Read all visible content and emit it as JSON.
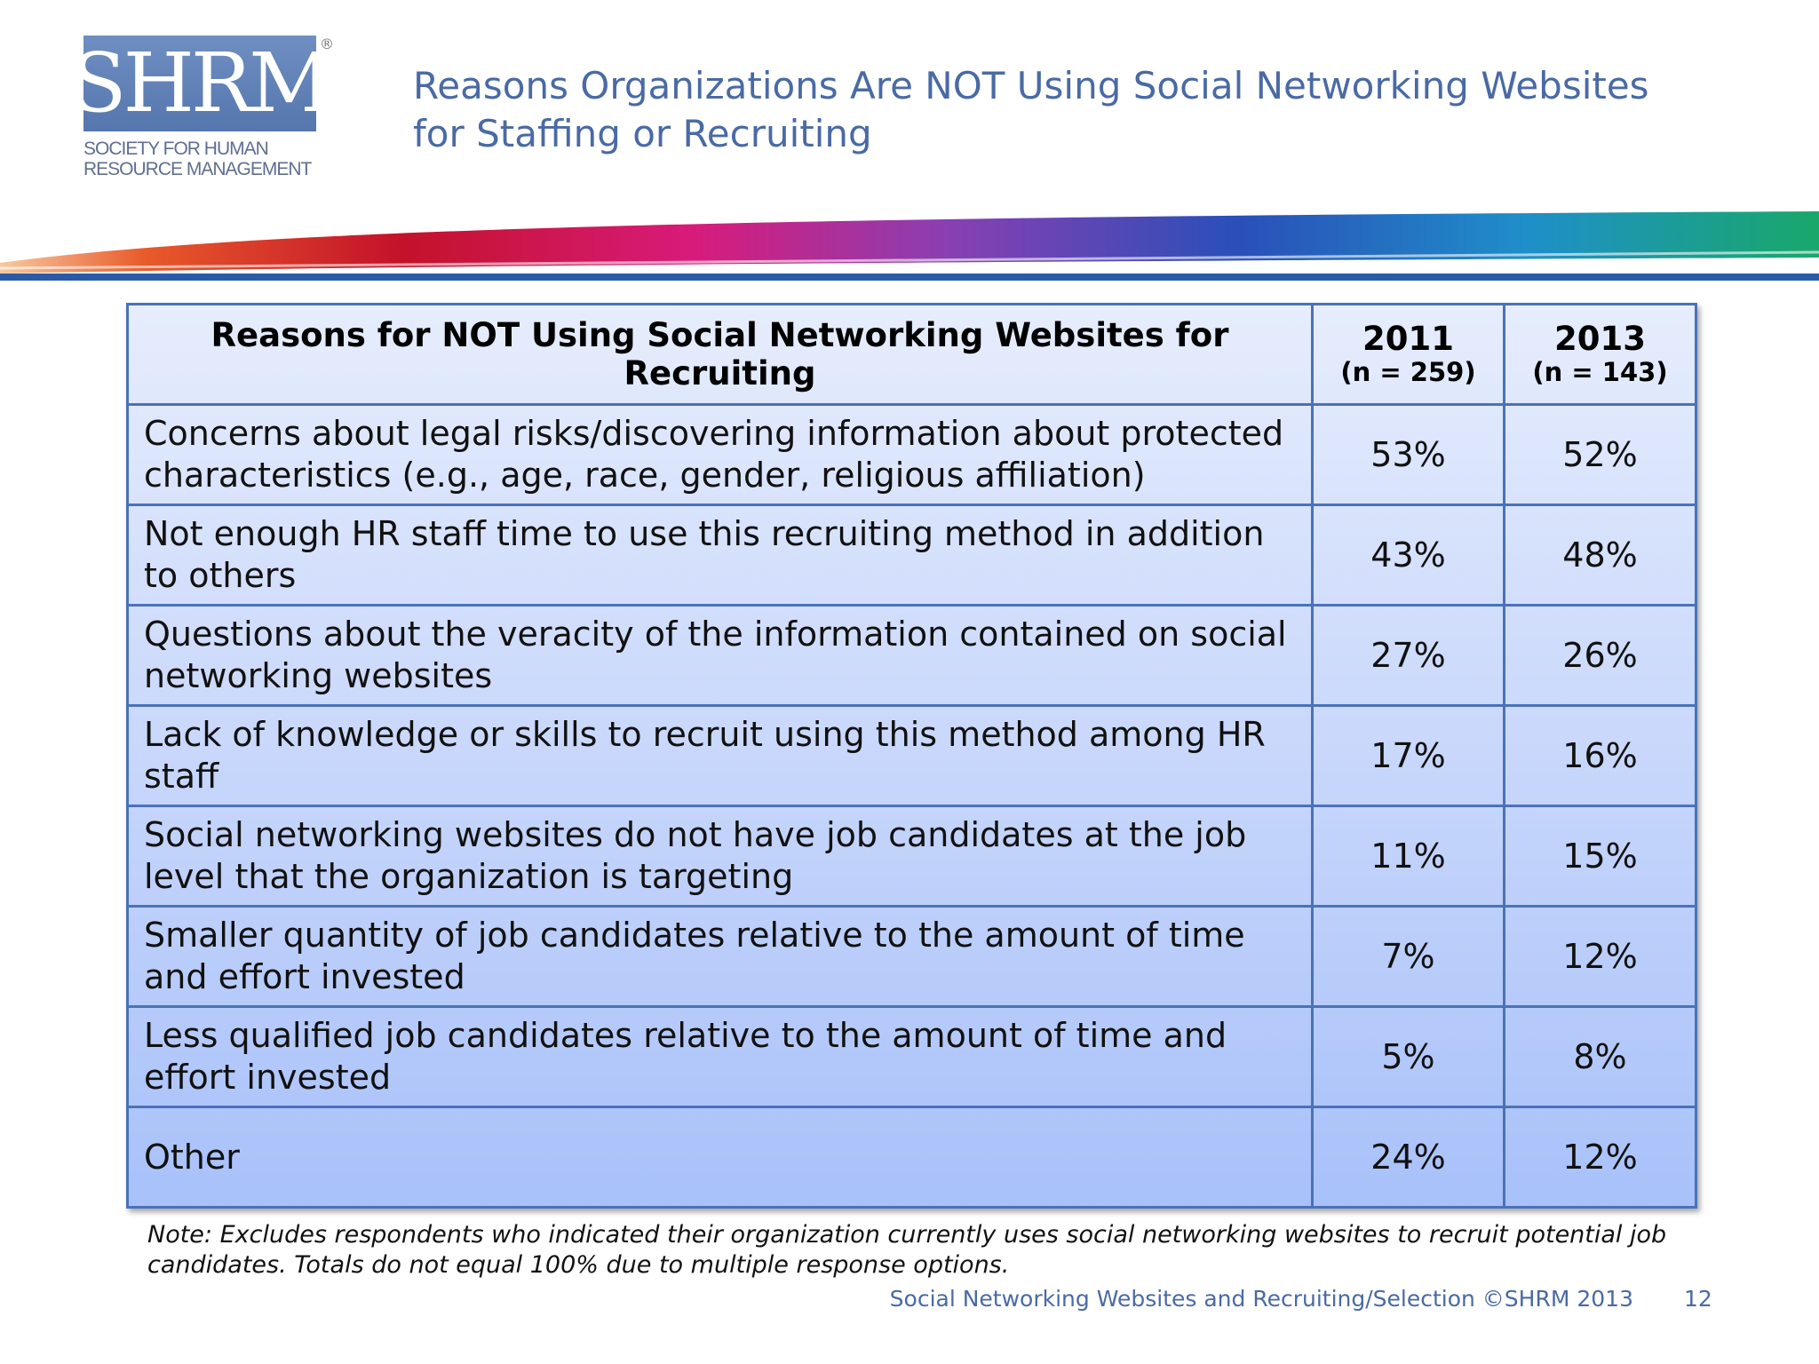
{
  "logo": {
    "letters": "SHRM",
    "registered": "®",
    "line1": "SOCIETY FOR HUMAN",
    "line2": "RESOURCE MANAGEMENT"
  },
  "title": {
    "line1": "Reasons Organizations Are NOT Using Social Networking Websites",
    "line2": "for Staffing or Recruiting"
  },
  "table": {
    "header": {
      "reason": "Reasons for NOT Using Social Networking Websites for Recruiting",
      "col1_year": "2011",
      "col1_n": "(n = 259)",
      "col2_year": "2013",
      "col2_n": "(n = 143)"
    },
    "rows": [
      {
        "reason": "Concerns about legal risks/discovering information about protected characteristics (e.g., age, race, gender, religious affiliation)",
        "y2011": "53%",
        "y2013": "52%"
      },
      {
        "reason": "Not enough HR staff time to use this recruiting method in addition to others",
        "y2011": "43%",
        "y2013": "48%"
      },
      {
        "reason": "Questions about the veracity of the information contained on social networking websites",
        "y2011": "27%",
        "y2013": "26%"
      },
      {
        "reason": "Lack of knowledge or skills to recruit using this method among HR staff",
        "y2011": "17%",
        "y2013": "16%"
      },
      {
        "reason": "Social networking websites do not have job candidates at the job level that the organization is targeting",
        "y2011": "11%",
        "y2013": "15%"
      },
      {
        "reason": "Smaller quantity of job candidates relative to the amount of time and effort invested",
        "y2011": "7%",
        "y2013": "12%"
      },
      {
        "reason": "Less qualified job candidates relative to the amount of time and effort invested",
        "y2011": "5%",
        "y2013": "8%"
      },
      {
        "reason": "Other",
        "y2011": "24%",
        "y2013": "12%"
      }
    ]
  },
  "note": "Note:  Excludes respondents who indicated their organization currently uses social networking websites to recruit potential job candidates.  Totals do not equal 100% due to multiple response options.",
  "footer": {
    "source": "Social Networking Websites and Recruiting/Selection ©SHRM 2013",
    "page": "12"
  },
  "colors": {
    "brand_blue": "#4a6aa5",
    "table_border": "#4a72b8",
    "logo_bg": "#5f80b8"
  }
}
